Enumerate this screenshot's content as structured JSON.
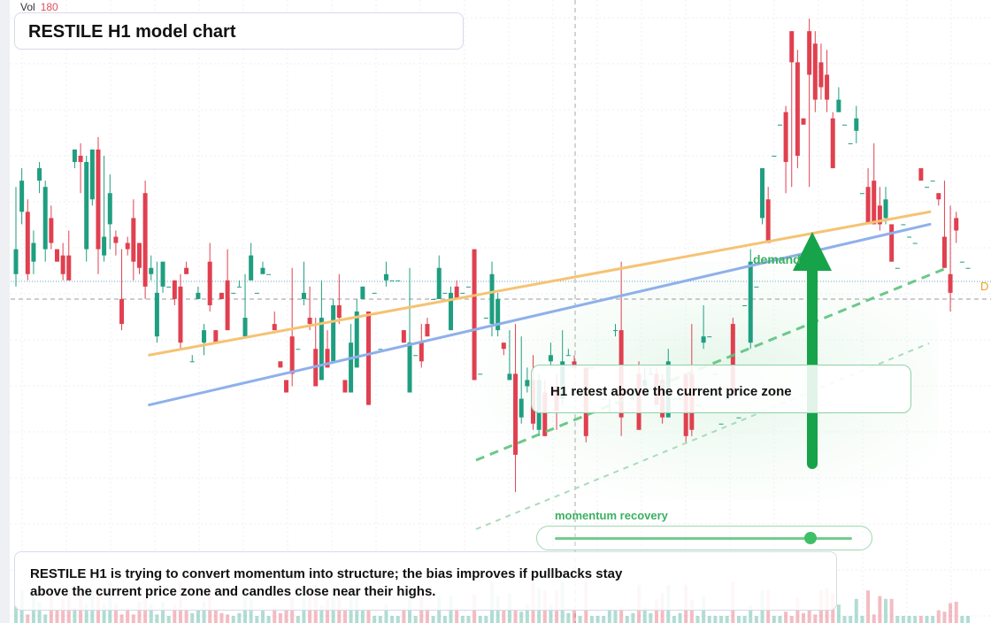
{
  "header": {
    "title": "RESTILE H1 model chart",
    "volume_label": "Vol",
    "volume_value": "180"
  },
  "annotations": {
    "callout": "H1 retest above the current price zone",
    "demand_label": "demand",
    "momentum_label": "momentum recovery",
    "right_tag": "D",
    "summary": "RESTILE H1 is trying to convert momentum into structure; the bias improves if pullbacks stay above the current price zone and candles close near their highs.",
    "slider_level": 0.86
  },
  "colors": {
    "up": "#1f9e80",
    "down": "#e0404f",
    "orange_line": "#f5c373",
    "blue_line": "#8fb0ea",
    "green_accent": "#16a34a"
  },
  "chart_data": {
    "type": "candlestick",
    "title": "RESTILE H1 model chart",
    "ylim": [
      0,
      100
    ],
    "current_price_line": 65,
    "candles": [
      [
        56,
        60,
        70,
        54
      ],
      [
        66,
        71,
        73,
        64
      ],
      [
        66,
        56,
        68,
        55
      ],
      [
        58,
        61,
        63,
        56
      ],
      [
        71,
        73,
        74,
        69
      ],
      [
        60,
        70,
        71,
        58
      ],
      [
        65,
        61,
        67,
        60
      ],
      [
        60,
        58,
        60,
        58
      ],
      [
        59,
        56,
        61,
        55
      ],
      [
        59,
        55,
        63,
        55
      ],
      [
        74,
        76,
        76,
        73
      ],
      [
        75,
        74,
        77,
        69
      ],
      [
        60,
        74,
        75,
        58
      ],
      [
        68,
        76,
        76,
        67
      ],
      [
        76,
        60,
        78,
        56
      ],
      [
        59,
        62,
        75,
        58
      ],
      [
        64,
        69,
        72,
        60
      ],
      [
        62,
        61,
        63,
        59
      ],
      [
        52,
        48,
        60,
        47
      ],
      [
        61,
        60,
        62,
        59
      ],
      [
        65,
        58,
        68,
        55
      ],
      [
        61,
        57,
        61,
        56
      ],
      [
        69,
        54,
        71,
        52
      ],
      [
        56,
        57,
        59,
        55
      ],
      [
        46,
        53,
        58,
        45
      ],
      [
        54,
        58,
        58,
        53
      ],
      [
        54,
        54,
        54,
        54
      ],
      [
        55,
        52,
        55,
        51
      ],
      [
        54,
        45,
        56,
        44
      ],
      [
        57,
        56,
        58,
        56
      ],
      [
        42,
        42,
        43,
        42
      ],
      [
        52,
        53,
        54,
        52
      ],
      [
        45,
        47,
        48,
        43
      ],
      [
        58,
        51,
        61,
        50
      ],
      [
        47,
        45,
        47,
        45
      ],
      [
        53,
        52,
        53,
        52
      ],
      [
        55,
        47,
        60,
        47
      ],
      [
        53,
        53,
        53,
        53
      ],
      [
        54,
        54,
        55,
        54
      ],
      [
        46,
        49,
        56,
        46
      ],
      [
        55,
        59,
        61,
        55
      ],
      [
        53,
        53,
        53,
        53
      ],
      [
        56,
        57,
        58,
        56
      ],
      [
        56,
        56,
        56,
        56
      ],
      [
        48,
        47,
        50,
        47
      ],
      [
        42,
        41,
        42,
        41
      ],
      [
        39,
        37,
        39,
        37
      ],
      [
        46,
        40,
        57,
        38
      ],
      [
        44,
        44,
        44,
        44
      ],
      [
        52,
        53,
        58,
        51
      ],
      [
        49,
        48,
        54,
        47
      ],
      [
        44,
        38,
        49,
        38
      ],
      [
        39,
        49,
        55,
        39
      ],
      [
        44,
        41,
        47,
        41
      ],
      [
        42,
        51,
        52,
        42
      ],
      [
        51,
        49,
        56,
        48
      ],
      [
        39,
        37,
        39,
        37
      ],
      [
        37,
        45,
        48,
        37
      ],
      [
        41,
        50,
        52,
        41
      ],
      [
        52,
        54,
        54,
        52
      ],
      [
        50,
        35,
        50,
        35
      ],
      [
        53,
        53,
        53,
        53
      ],
      [
        44,
        44,
        44,
        44
      ],
      [
        55,
        56,
        58,
        54
      ],
      [
        55,
        55,
        55,
        55
      ],
      [
        55,
        55,
        55,
        55
      ],
      [
        47,
        45,
        47,
        45
      ],
      [
        37,
        45,
        57,
        37
      ],
      [
        43,
        43,
        43,
        43
      ],
      [
        45,
        42,
        48,
        41
      ],
      [
        48,
        46,
        49,
        46
      ],
      [
        52,
        52,
        52,
        52
      ],
      [
        52,
        57,
        59,
        52
      ],
      [
        53,
        53,
        53,
        53
      ],
      [
        47,
        53,
        54,
        47
      ],
      [
        54,
        52,
        55,
        52
      ],
      [
        53,
        53,
        53,
        53
      ],
      [
        54,
        54,
        54,
        54
      ],
      [
        60,
        39,
        59,
        39
      ],
      [
        40,
        40,
        40,
        40
      ],
      [
        49,
        49,
        49,
        49
      ],
      [
        48,
        56,
        58,
        46
      ],
      [
        47,
        52,
        53,
        46
      ],
      [
        45,
        44,
        45,
        43
      ],
      [
        39,
        40,
        47,
        39
      ],
      [
        40,
        27,
        48,
        21
      ],
      [
        33,
        36,
        46,
        32
      ],
      [
        38,
        39,
        41,
        37
      ],
      [
        39,
        32,
        43,
        31
      ],
      [
        31,
        39,
        40,
        30
      ],
      [
        37,
        30,
        39,
        30
      ],
      [
        42,
        43,
        45,
        41
      ],
      [
        38,
        34,
        40,
        31
      ],
      [
        36,
        42,
        47,
        35
      ],
      [
        43,
        43,
        44,
        43
      ],
      [
        42,
        41,
        43,
        41
      ],
      [
        34,
        34,
        34,
        34
      ],
      [
        41,
        30,
        41,
        29
      ],
      [
        41,
        41,
        41,
        41
      ],
      [
        37,
        37,
        37,
        37
      ],
      [
        36,
        36,
        36,
        36
      ],
      [
        34,
        34,
        36,
        34
      ],
      [
        47,
        47,
        48,
        46
      ],
      [
        47,
        33,
        58,
        30
      ],
      [
        37,
        37,
        37,
        37
      ],
      [
        36,
        36,
        37,
        36
      ],
      [
        40,
        31,
        42,
        31
      ],
      [
        38,
        39,
        41,
        38
      ],
      [
        40,
        40,
        41,
        40
      ],
      [
        40,
        35,
        41,
        35
      ],
      [
        39,
        33,
        40,
        32
      ],
      [
        33,
        42,
        44,
        33
      ],
      [
        36,
        36,
        36,
        36
      ],
      [
        36,
        36,
        37,
        36
      ],
      [
        40,
        30,
        40,
        29
      ],
      [
        40,
        31,
        48,
        30
      ],
      [
        35,
        35,
        35,
        35
      ],
      [
        45,
        46,
        51,
        44
      ],
      [
        46,
        46,
        46,
        46
      ],
      [
        40,
        40,
        40,
        40
      ],
      [
        32,
        32,
        32,
        32
      ],
      [
        36,
        36,
        36,
        36
      ],
      [
        48,
        37,
        49,
        37
      ],
      [
        33,
        33,
        33,
        33
      ],
      [
        51,
        51,
        51,
        51
      ],
      [
        45,
        58,
        60,
        44
      ],
      [
        54,
        54,
        54,
        54
      ],
      [
        65,
        73,
        73,
        64
      ],
      [
        68,
        61,
        70,
        61
      ],
      [
        75,
        75,
        75,
        75
      ],
      [
        80,
        80,
        80,
        80
      ],
      [
        82,
        74,
        83,
        69
      ],
      [
        95,
        90,
        95,
        70
      ],
      [
        90,
        75,
        92,
        73
      ],
      [
        81,
        80,
        81,
        80
      ],
      [
        95,
        88,
        97,
        70
      ],
      [
        93,
        84,
        95,
        82
      ],
      [
        90,
        86,
        93,
        84
      ],
      [
        88,
        84,
        92,
        82
      ],
      [
        81,
        73,
        82,
        74
      ],
      [
        82,
        84,
        86,
        82
      ],
      [
        80,
        80,
        80,
        80
      ],
      [
        77,
        77,
        77,
        77
      ],
      [
        79,
        81,
        83,
        77
      ],
      [
        69,
        69,
        69,
        69
      ],
      [
        70,
        64,
        73,
        64
      ],
      [
        71,
        64,
        77,
        64
      ],
      [
        67,
        64,
        70,
        63
      ],
      [
        65,
        68,
        70,
        64
      ],
      [
        64,
        58,
        64,
        58
      ],
      [
        57,
        57,
        57,
        57
      ],
      [
        64,
        64,
        64,
        64
      ],
      [
        62,
        62,
        62,
        62
      ],
      [
        61,
        61,
        61,
        61
      ],
      [
        73,
        71,
        71,
        71
      ],
      [
        70,
        70,
        70,
        70
      ],
      [
        71,
        71,
        71,
        71
      ],
      [
        69,
        68,
        69,
        67
      ],
      [
        62,
        57,
        71,
        57
      ],
      [
        56,
        53,
        67,
        50
      ],
      [
        65,
        63,
        66,
        61
      ],
      [
        58,
        58,
        58,
        58
      ],
      [
        57,
        57,
        57,
        57
      ]
    ],
    "trendlines": [
      {
        "name": "",
        "from": [
          0.14,
          43
        ],
        "to": [
          0.96,
          66
        ]
      },
      {
        "name": "",
        "from": [
          0.14,
          35
        ],
        "to": [
          0.96,
          64
        ]
      }
    ]
  }
}
